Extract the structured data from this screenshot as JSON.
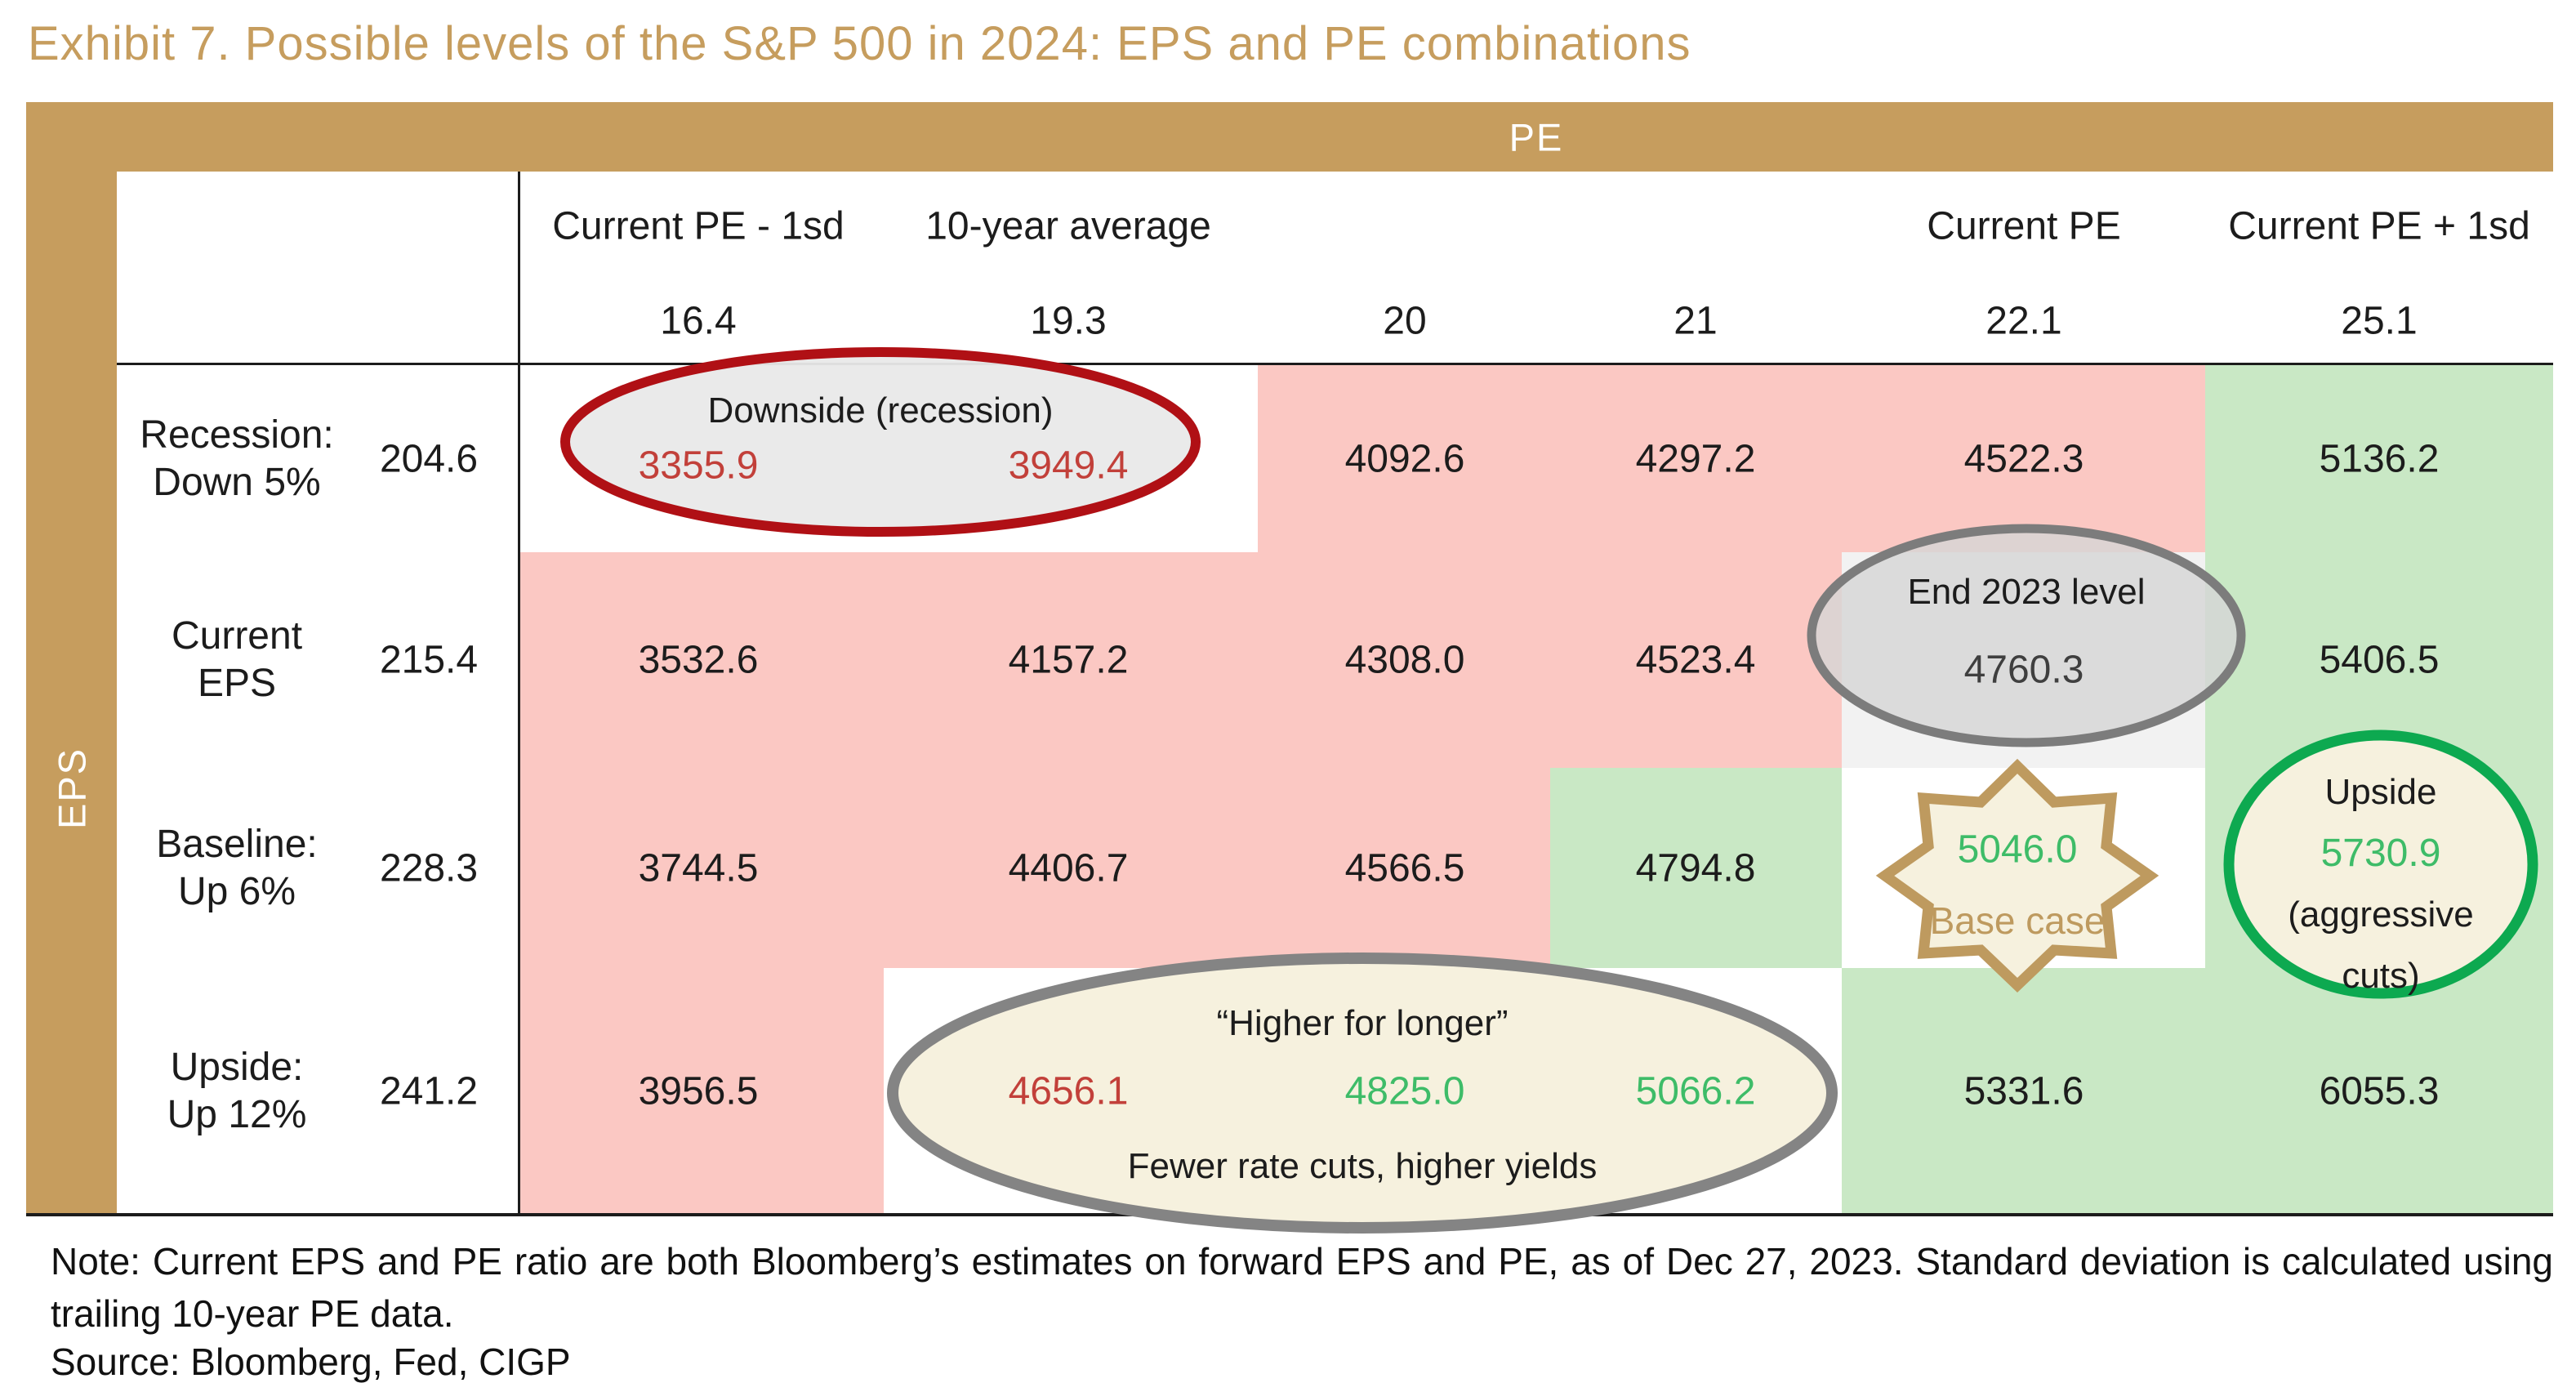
{
  "title": "Exhibit 7. Possible levels of the S&P 500 in 2024: EPS and PE combinations",
  "matrix": {
    "pe_axis_label": "PE",
    "eps_axis_label": "EPS",
    "pe_headers": [
      "Current PE - 1sd",
      "10-year average",
      "",
      "",
      "Current PE",
      "Current PE + 1sd"
    ],
    "pe_values": [
      "16.4",
      "19.3",
      "20",
      "21",
      "22.1",
      "25.1"
    ],
    "eps_scenarios": [
      {
        "label_line1": "Recession:",
        "label_line2": "Down 5%",
        "eps": "204.6",
        "values": [
          "3355.9",
          "3949.4",
          "4092.6",
          "4297.2",
          "4522.3",
          "5136.2"
        ]
      },
      {
        "label_line1": "Current",
        "label_line2": "EPS",
        "eps": "215.4",
        "values": [
          "3532.6",
          "4157.2",
          "4308.0",
          "4523.4",
          "4760.3",
          "5406.5"
        ]
      },
      {
        "label_line1": "Baseline:",
        "label_line2": "Up 6%",
        "eps": "228.3",
        "values": [
          "3744.5",
          "4406.7",
          "4566.5",
          "4794.8",
          "5046.0",
          "5730.9"
        ]
      },
      {
        "label_line1": "Upside:",
        "label_line2": "Up 12%",
        "eps": "241.2",
        "values": [
          "3956.5",
          "4656.1",
          "4825.0",
          "5066.2",
          "5331.6",
          "6055.3"
        ]
      }
    ]
  },
  "annotations": {
    "downside": {
      "label": "Downside (recession)"
    },
    "end_2023": {
      "label": "End 2023 level"
    },
    "base_case": {
      "label": "Base case"
    },
    "upside": {
      "title": "Upside",
      "subtitle_line1": "(aggressive",
      "subtitle_line2": "cuts)"
    },
    "higher_for_longer": {
      "title": "“Higher for longer”",
      "subtitle": "Fewer rate cuts, higher yields"
    }
  },
  "note": "Note: Current EPS and PE ratio are both Bloomberg’s estimates on forward EPS and PE, as of Dec 27, 2023. Standard deviation is calculated using trailing 10-year PE data.",
  "source": "Source: Bloomberg, Fed, CIGP",
  "colors": {
    "gold": "#c69d5e",
    "pink_cell": "#fbc8c3",
    "green_cell": "#c9e8c5",
    "gray_cell": "#f2f2f2",
    "black_text": "#1c1c1c",
    "red_text": "#c2403a",
    "green_text": "#3ebc68",
    "gray_text": "#3f3f3f",
    "red_border": "#b01015",
    "gray_border": "#7c7c7c",
    "green_border": "#0da950",
    "star_gold": "#be9a5f",
    "cream_fill": "#f6f1de"
  },
  "chart_data": {
    "type": "table",
    "title": "Exhibit 7. Possible levels of the S&P 500 in 2024: EPS and PE combinations",
    "x_axis": {
      "label": "PE",
      "headers": [
        "Current PE - 1sd",
        "10-year average",
        "",
        "",
        "Current PE",
        "Current PE + 1sd"
      ],
      "values": [
        16.4,
        19.3,
        20,
        21,
        22.1,
        25.1
      ]
    },
    "y_axis": {
      "label": "EPS",
      "scenarios": [
        "Recession: Down 5%",
        "Current EPS",
        "Baseline: Up 6%",
        "Upside: Up 12%"
      ],
      "values": [
        204.6,
        215.4,
        228.3,
        241.2
      ]
    },
    "matrix": [
      [
        3355.9,
        3949.4,
        4092.6,
        4297.2,
        4522.3,
        5136.2
      ],
      [
        3532.6,
        4157.2,
        4308.0,
        4523.4,
        4760.3,
        5406.5
      ],
      [
        3744.5,
        4406.7,
        4566.5,
        4794.8,
        5046.0,
        5730.9
      ],
      [
        3956.5,
        4656.1,
        4825.0,
        5066.2,
        5331.6,
        6055.3
      ]
    ],
    "cell_color_legend": "pink = below end-2023 close (4760.3), green = above end-2023 close",
    "callouts": [
      {
        "label": "Downside (recession)",
        "cells": [
          3355.9,
          3949.4
        ]
      },
      {
        "label": "End 2023 level",
        "cells": [
          4760.3
        ]
      },
      {
        "label": "Base case",
        "cells": [
          5046.0
        ]
      },
      {
        "label": "Upside (aggressive cuts)",
        "cells": [
          5730.9
        ]
      },
      {
        "label": "“Higher for longer” — Fewer rate cuts, higher yields",
        "cells": [
          4656.1,
          4825.0,
          5066.2
        ]
      }
    ]
  }
}
